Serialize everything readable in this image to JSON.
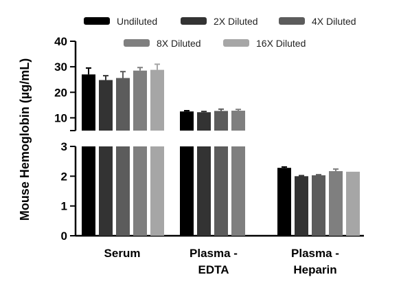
{
  "chart_data": {
    "type": "bar",
    "ylabel": "Mouse Hemoglobin (µg/mL)",
    "axis_break": true,
    "lower_segment": {
      "ylim": [
        0,
        3
      ],
      "ticks": [
        "0",
        "1",
        "2",
        "3"
      ]
    },
    "upper_segment": {
      "ylim": [
        5,
        40
      ],
      "ticks": [
        "10",
        "20",
        "30",
        "40"
      ]
    },
    "categories": [
      "Serum",
      "Plasma -\nEDTA",
      "Plasma -\nHeparin"
    ],
    "legend_position": "top",
    "series": [
      {
        "name": "Undiluted",
        "color": "#000000",
        "values": [
          27.0,
          12.5,
          2.28
        ],
        "errors": [
          2.5,
          0.3,
          0.03
        ]
      },
      {
        "name": "2X Diluted",
        "color": "#333333",
        "values": [
          24.8,
          12.2,
          2.0
        ],
        "errors": [
          1.7,
          0.3,
          0.02
        ]
      },
      {
        "name": "4X Diluted",
        "color": "#5c5c5c",
        "values": [
          25.6,
          12.7,
          2.03
        ],
        "errors": [
          2.5,
          0.7,
          0.02
        ]
      },
      {
        "name": "8X Diluted",
        "color": "#7f7f7f",
        "values": [
          28.5,
          12.8,
          2.17
        ],
        "errors": [
          1.2,
          0.5,
          0.07
        ]
      },
      {
        "name": "16X Diluted",
        "color": "#a6a6a6",
        "values": [
          28.8,
          null,
          2.15
        ],
        "errors": [
          2.2,
          null,
          0.0
        ]
      }
    ]
  }
}
